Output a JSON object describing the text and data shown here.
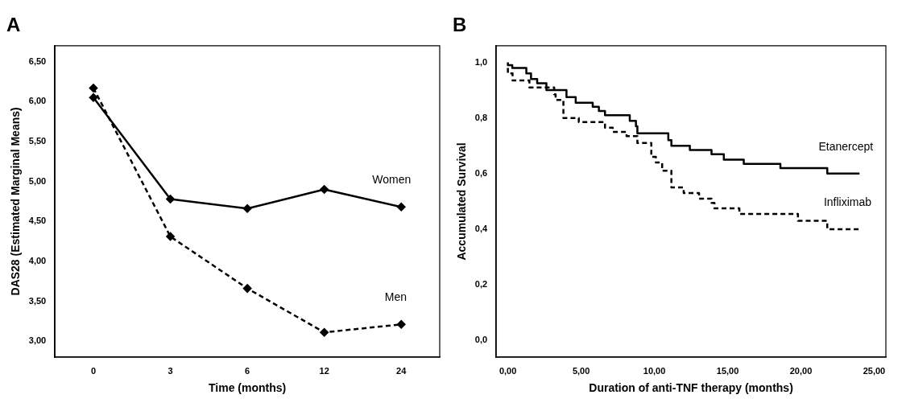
{
  "chart_data": [
    {
      "type": "line",
      "title": "A",
      "xlabel": "Time (months)",
      "ylabel": "DAS28 (Estimated Marginal Means)",
      "categories": [
        "0",
        "3",
        "6",
        "12",
        "24"
      ],
      "series": [
        {
          "name": "Women",
          "color": "#000000",
          "line_style": "solid",
          "values": [
            6.05,
            4.78,
            4.66,
            4.9,
            4.68
          ]
        },
        {
          "name": "Men",
          "color": "#000000",
          "line_style": "dashed",
          "values": [
            6.17,
            4.31,
            3.66,
            3.11,
            3.21
          ]
        }
      ],
      "ylim": [
        2.8,
        6.7
      ],
      "yticks": [
        {
          "value": 3,
          "label": "3,00"
        },
        {
          "value": 3.5,
          "label": "3,50"
        },
        {
          "value": 4,
          "label": "4,00"
        },
        {
          "value": 4.5,
          "label": "4,50"
        },
        {
          "value": 5,
          "label": "5,00"
        },
        {
          "value": 5.5,
          "label": "5,50"
        },
        {
          "value": 6,
          "label": "6,00"
        },
        {
          "value": 6.5,
          "label": "6,50"
        }
      ],
      "marker": "diamond",
      "grid": false,
      "legend": false
    },
    {
      "type": "step",
      "title": "B",
      "xlabel": "Duration of anti-TNF therapy (months)",
      "ylabel": "Accumulated Survival",
      "series": [
        {
          "name": "Etanercept",
          "color": "#000000",
          "line_style": "solid",
          "x": [
            0,
            0.3,
            1.26,
            1.58,
            2.0,
            2.63,
            4.0,
            4.63,
            5.79,
            6.21,
            6.63,
            8.32,
            8.74,
            8.84,
            10.95,
            11.16,
            12.42,
            13.9,
            14.74,
            16.1,
            18.6,
            21.8,
            23.9,
            24.0
          ],
          "values": [
            1.0,
            0.99,
            0.98,
            0.96,
            0.94,
            0.925,
            0.9,
            0.875,
            0.855,
            0.84,
            0.825,
            0.81,
            0.79,
            0.77,
            0.745,
            0.72,
            0.7,
            0.685,
            0.67,
            0.65,
            0.635,
            0.62,
            0.6,
            0.6
          ]
        },
        {
          "name": "Infliximab",
          "color": "#000000",
          "line_style": "dashed",
          "x": [
            0,
            0.32,
            1.47,
            3.16,
            3.26,
            3.79,
            4.84,
            6.63,
            7.16,
            8.1,
            8.84,
            9.79,
            10.1,
            10.53,
            11.16,
            12.0,
            13.05,
            13.9,
            14.1,
            15.8,
            19.8,
            21.8,
            22.5,
            24.0
          ],
          "values": [
            0.98,
            0.96,
            0.935,
            0.91,
            0.885,
            0.865,
            0.8,
            0.785,
            0.765,
            0.75,
            0.735,
            0.71,
            0.66,
            0.64,
            0.61,
            0.55,
            0.53,
            0.51,
            0.495,
            0.475,
            0.455,
            0.43,
            0.4,
            0.4
          ]
        }
      ],
      "xlim": [
        -0.8,
        25.8
      ],
      "xticks": [
        {
          "value": 0,
          "label": "0,00"
        },
        {
          "value": 5,
          "label": "5,00"
        },
        {
          "value": 10,
          "label": "10,00"
        },
        {
          "value": 15,
          "label": "15,00"
        },
        {
          "value": 20,
          "label": "20,00"
        },
        {
          "value": 25,
          "label": "25,00"
        }
      ],
      "ylim": [
        -0.06,
        1.06
      ],
      "yticks": [
        {
          "value": 0,
          "label": "0,0"
        },
        {
          "value": 0.2,
          "label": "0,2"
        },
        {
          "value": 0.4,
          "label": "0,4"
        },
        {
          "value": 0.6,
          "label": "0,6"
        },
        {
          "value": 0.8,
          "label": "0,8"
        },
        {
          "value": 1,
          "label": "1,0"
        }
      ],
      "marker": "none",
      "grid": false,
      "legend": false
    }
  ]
}
